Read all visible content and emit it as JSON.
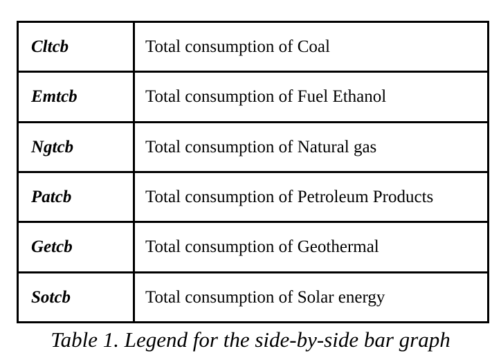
{
  "table": {
    "rows": [
      {
        "code": "Cltcb",
        "description": "Total consumption of Coal"
      },
      {
        "code": "Emtcb",
        "description": "Total consumption of Fuel Ethanol"
      },
      {
        "code": "Ngtcb",
        "description": "Total consumption of Natural gas"
      },
      {
        "code": "Patcb",
        "description": "Total consumption of Petroleum Products"
      },
      {
        "code": "Getcb",
        "description": "Total consumption of Geothermal"
      },
      {
        "code": "Sotcb",
        "description": "Total consumption of Solar energy"
      }
    ]
  },
  "caption": "Table 1. Legend for the side-by-side bar graph"
}
